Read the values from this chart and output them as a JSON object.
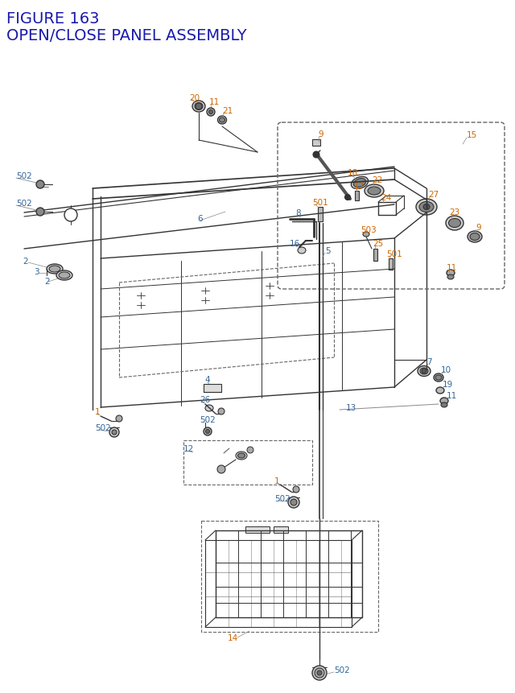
{
  "title_line1": "FIGURE 163",
  "title_line2": "OPEN/CLOSE PANEL ASSEMBLY",
  "title_color": "#1a1aaa",
  "title_fontsize": 14,
  "bg_color": "#ffffff",
  "line_color": "#333333",
  "orange_color": "#cc6600",
  "blue_color": "#336699",
  "dashed_color": "#666666",
  "figsize": [
    6.4,
    8.62
  ],
  "dpi": 100
}
